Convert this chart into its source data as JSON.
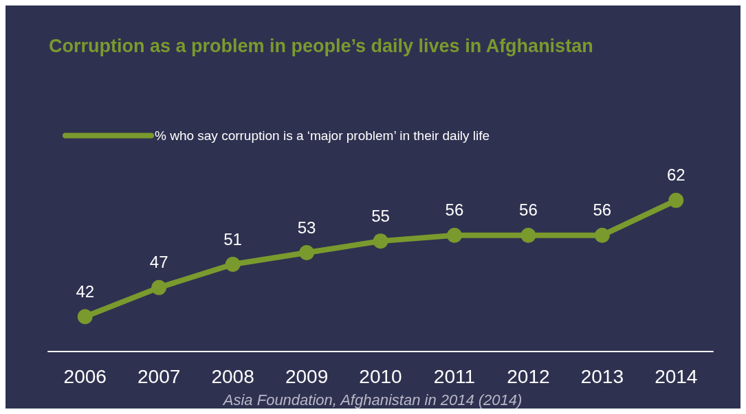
{
  "chart_data": {
    "type": "line",
    "title": "Corruption as a problem in people’s daily lives in Afghanistan",
    "categories": [
      "2006",
      "2007",
      "2008",
      "2009",
      "2010",
      "2011",
      "2012",
      "2013",
      "2014"
    ],
    "series": [
      {
        "name": "% who say corruption is a ‘major problem’ in their daily life",
        "color": "#7a9a2e",
        "values": [
          42,
          47,
          51,
          53,
          55,
          56,
          56,
          56,
          62
        ]
      }
    ],
    "tick_labels": "x",
    "data_labels": true,
    "marker": "circle",
    "line_style": "solid",
    "grid": false,
    "legend": "top left",
    "annotations": [
      "Asia Foundation, Afghanistan in 2014 (2014)"
    ]
  }
}
